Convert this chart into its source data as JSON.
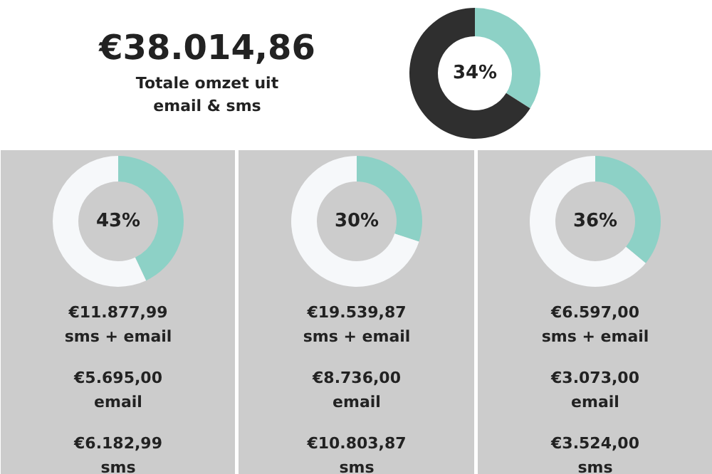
{
  "chart_data": [
    {
      "type": "donut",
      "title": "€38.014,86",
      "subtitle": "Totale omzet uit email & sms",
      "categories": [
        null,
        null
      ],
      "values": [
        34,
        66
      ],
      "colors": [
        "#8dd1c6",
        "#2f2f2f"
      ],
      "annotations": [
        "34%"
      ]
    },
    {
      "type": "donut",
      "categories": [
        null,
        null
      ],
      "values": [
        43,
        57
      ],
      "colors": [
        "#8dd1c6",
        "#f6f8fa"
      ],
      "annotations": [
        "43%",
        "€11.877,99",
        "sms + email",
        "€5.695,00",
        "email",
        "€6.182,99",
        "sms"
      ]
    },
    {
      "type": "donut",
      "categories": [
        null,
        null
      ],
      "values": [
        30,
        70
      ],
      "colors": [
        "#8dd1c6",
        "#f6f8fa"
      ],
      "annotations": [
        "30%",
        "€19.539,87",
        "sms + email",
        "€8.736,00",
        "email",
        "€10.803,87",
        "sms"
      ]
    },
    {
      "type": "donut",
      "categories": [
        null,
        null
      ],
      "values": [
        36,
        64
      ],
      "colors": [
        "#8dd1c6",
        "#f6f8fa"
      ],
      "annotations": [
        "36%",
        "€6.597,00",
        "sms + email",
        "€3.073,00",
        "email",
        "€3.524,00",
        "sms"
      ]
    }
  ]
}
